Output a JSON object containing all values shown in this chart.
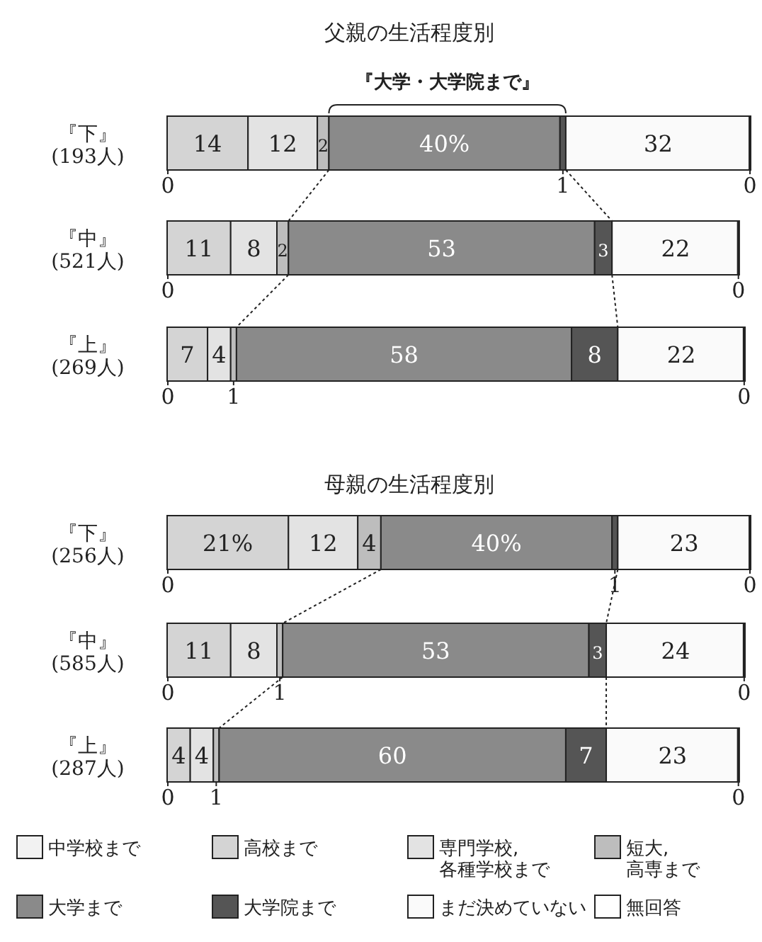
{
  "chart_data": [
    {
      "type": "bar",
      "orientation": "horizontal",
      "stacked": true,
      "title": "父親の生活程度別",
      "annotations": [
        "『大学・大学院まで』"
      ],
      "categories": [
        "『下』\n(193人)",
        "『中』\n(521人)",
        "『上』\n(269人)"
      ],
      "series": [
        {
          "color": "#f2f2f2",
          "values": [
            0,
            0,
            0
          ],
          "value_labels": [
            "0",
            "0",
            "0"
          ]
        },
        {
          "color": "#d4d4d4",
          "values": [
            14,
            11,
            7
          ],
          "value_labels": [
            "14",
            "11",
            "7"
          ]
        },
        {
          "color": "#e3e3e3",
          "values": [
            12,
            8,
            4
          ],
          "value_labels": [
            "12",
            "8",
            "4"
          ]
        },
        {
          "color": "#bdbdbd",
          "values": [
            2,
            2,
            1
          ],
          "value_labels": [
            "2",
            "2",
            "1"
          ]
        },
        {
          "color": "#8a8a8a",
          "values": [
            40,
            53,
            58
          ],
          "value_labels": [
            "40%",
            "53",
            "58"
          ]
        },
        {
          "color": "#555555",
          "values": [
            1,
            3,
            8
          ],
          "value_labels": [
            "1",
            "3",
            "8"
          ]
        },
        {
          "color": "#fafafa",
          "values": [
            32,
            22,
            22
          ],
          "value_labels": [
            "32",
            "22",
            "22"
          ]
        },
        {
          "color": "#ffffff",
          "values": [
            0,
            0,
            0
          ],
          "value_labels": [
            "0",
            "0",
            "0"
          ]
        }
      ]
    },
    {
      "type": "bar",
      "orientation": "horizontal",
      "stacked": true,
      "title": "母親の生活程度別",
      "legend": "bottom",
      "categories": [
        "『下』\n(256人)",
        "『中』\n(585人)",
        "『上』\n(287人)"
      ],
      "series": [
        {
          "name": "中学校まで",
          "color": "#f2f2f2",
          "values": [
            0,
            0,
            0
          ],
          "value_labels": [
            "0",
            "0",
            "0"
          ]
        },
        {
          "name": "高校まで",
          "color": "#d4d4d4",
          "values": [
            21,
            11,
            4
          ],
          "value_labels": [
            "21%",
            "11",
            "4"
          ]
        },
        {
          "name": "専門学校,\n各種学校まで",
          "color": "#e3e3e3",
          "values": [
            12,
            8,
            4
          ],
          "value_labels": [
            "12",
            "8",
            "4"
          ]
        },
        {
          "name": "短大,\n高専まで",
          "color": "#bdbdbd",
          "values": [
            4,
            1,
            1
          ],
          "value_labels": [
            "4",
            "1",
            "1"
          ]
        },
        {
          "name": "大学まで",
          "color": "#8a8a8a",
          "values": [
            40,
            53,
            60
          ],
          "value_labels": [
            "40%",
            "53",
            "60"
          ]
        },
        {
          "name": "大学院まで",
          "color": "#555555",
          "values": [
            1,
            3,
            7
          ],
          "value_labels": [
            "1",
            "3",
            "7"
          ]
        },
        {
          "name": "まだ決めていない",
          "color": "#fafafa",
          "values": [
            23,
            24,
            23
          ],
          "value_labels": [
            "23",
            "24",
            "23"
          ]
        },
        {
          "name": "無回答",
          "color": "#ffffff",
          "values": [
            0,
            0,
            0
          ],
          "value_labels": [
            "0",
            "0",
            "0"
          ]
        }
      ]
    }
  ]
}
